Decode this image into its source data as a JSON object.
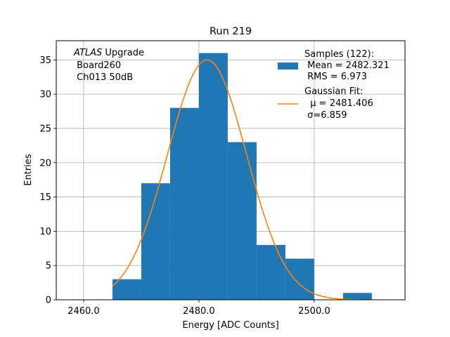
{
  "chart_data": {
    "type": "bar",
    "title": "Run 219",
    "xlabel": "Energy [ADC Counts]",
    "ylabel": "Entries",
    "xlim": [
      2455.25,
      2515.75
    ],
    "ylim": [
      0,
      37.8
    ],
    "x_ticks": [
      2460,
      2480,
      2500
    ],
    "x_tick_labels": [
      "2460.0",
      "2480.0",
      "2500.0"
    ],
    "y_ticks": [
      0,
      5,
      10,
      15,
      20,
      25,
      30,
      35
    ],
    "y_tick_labels": [
      "0",
      "5",
      "10",
      "15",
      "20",
      "25",
      "30",
      "35"
    ],
    "grid": true,
    "bin_edges": [
      2465,
      2470,
      2475,
      2480,
      2485,
      2490,
      2495,
      2500,
      2505,
      2510
    ],
    "counts": [
      3,
      17,
      28,
      36,
      23,
      8,
      6,
      0,
      1
    ],
    "fit": {
      "mu": 2481.406,
      "sigma": 6.859,
      "amplitude": 35,
      "x_range": [
        2465,
        2508
      ]
    },
    "annotation": {
      "italic": "ATLAS",
      "first_line_rest": " Upgrade",
      "lines": [
        " Board260",
        " Ch013 50dB"
      ]
    },
    "legend": {
      "placement": "top-right",
      "entries": [
        {
          "lines": [
            "Samples (122):",
            " Mean = 2482.321",
            " RMS = 6.973"
          ],
          "color": "#1f77b4",
          "kind": "patch"
        },
        {
          "lines": [
            "Gaussian Fit:",
            "  μ = 2481.406",
            " σ=6.859"
          ],
          "color": "#ff7f0e",
          "kind": "line"
        }
      ]
    }
  }
}
